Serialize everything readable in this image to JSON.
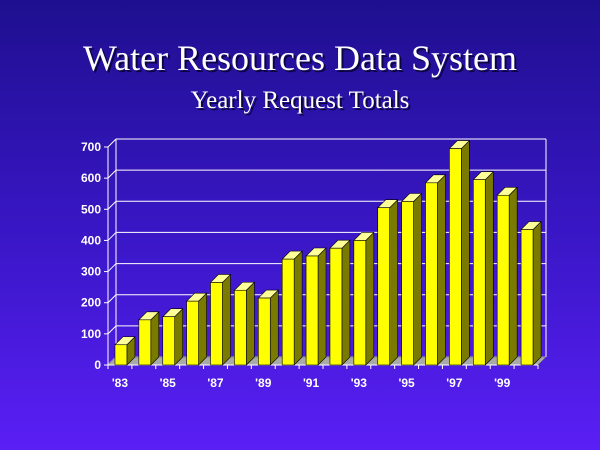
{
  "header": {
    "title": "Water Resources Data System",
    "subtitle": "Yearly Request Totals"
  },
  "colors": {
    "bar_front": "#ffff00",
    "bar_side": "#7a7a00",
    "bar_top": "#ffff99",
    "grid": "#ffffff",
    "floor": "#a9a9a9"
  },
  "chart_data": {
    "type": "bar",
    "title": "Water Resources Data System",
    "subtitle": "Yearly Request Totals",
    "categories": [
      "'83",
      "'84",
      "'85",
      "'86",
      "'87",
      "'88",
      "'89",
      "'90",
      "'91",
      "'92",
      "'93",
      "'94",
      "'95",
      "'96",
      "'97",
      "'98",
      "'99",
      "'00"
    ],
    "x_tick_labels": [
      "'83",
      "'85",
      "'87",
      "'89",
      "'91",
      "'93",
      "'95",
      "'97",
      "'99"
    ],
    "values": [
      65,
      145,
      155,
      205,
      265,
      240,
      215,
      340,
      350,
      375,
      400,
      505,
      525,
      585,
      695,
      595,
      545,
      435
    ],
    "yticks": [
      0,
      100,
      200,
      300,
      400,
      500,
      600,
      700
    ],
    "ylim": [
      0,
      700
    ],
    "xlabel": "",
    "ylabel": "",
    "grid": true,
    "legend": "none",
    "style": "3d"
  }
}
